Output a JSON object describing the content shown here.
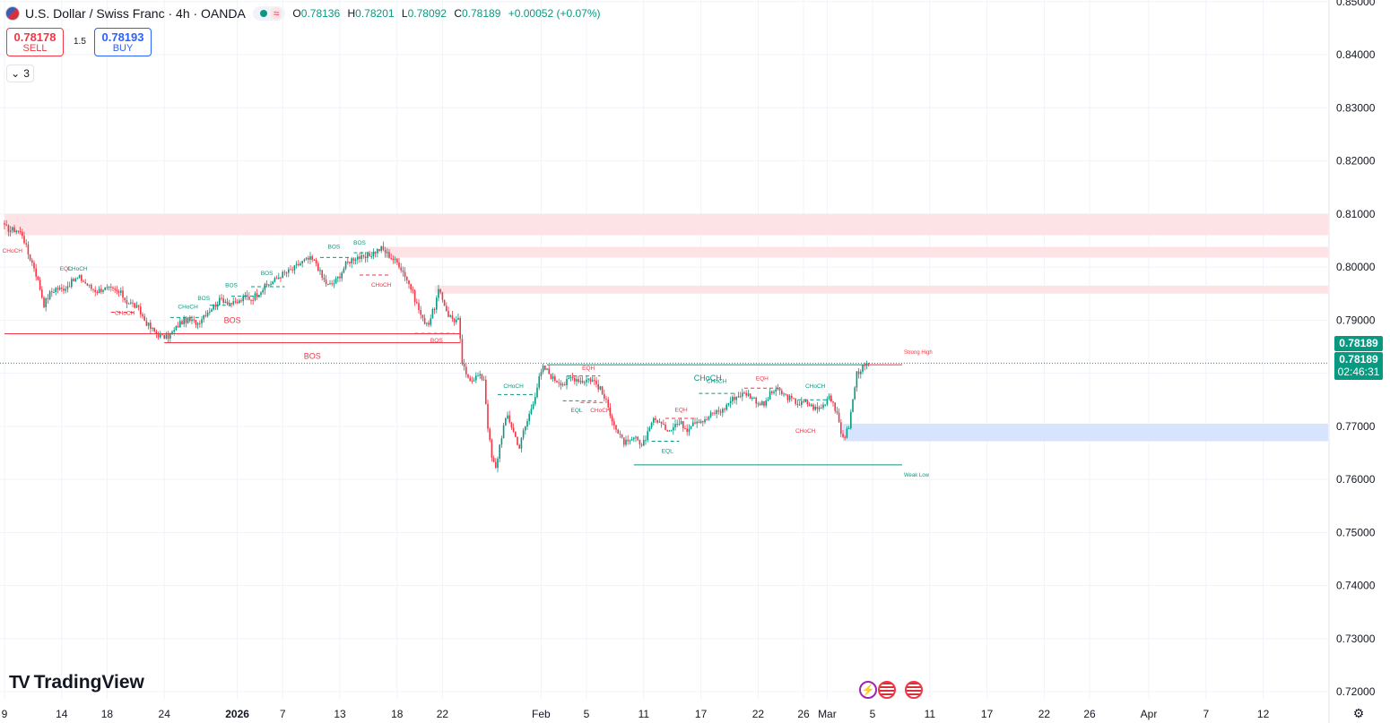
{
  "header": {
    "symbol_title": "U.S. Dollar / Swiss Franc · 4h · OANDA",
    "ohlc": {
      "o_label": "O",
      "o": "0.78136",
      "h_label": "H",
      "h": "0.78201",
      "l_label": "L",
      "l": "0.78092",
      "c_label": "C",
      "c": "0.78189",
      "change": "+0.00052 (+0.07%)"
    }
  },
  "trade": {
    "sell_price": "0.78178",
    "sell_label": "SELL",
    "buy_price": "0.78193",
    "buy_label": "BUY",
    "spread": "1.5"
  },
  "indicators": {
    "count": "3"
  },
  "brand": {
    "name": "TradingView"
  },
  "price_labels": {
    "last": "0.78189",
    "countdown_price": "0.78189",
    "countdown": "02:46:31"
  },
  "colors": {
    "up": "#089981",
    "down": "#f23645",
    "supply_zone": "#fde3e6",
    "demand_zone": "#d6e4fd",
    "accent": "#2962ff"
  },
  "icons": {
    "settings": "gear-icon",
    "events": [
      "lightning-icon",
      "us-flag-icon",
      "us-flag-icon"
    ]
  },
  "chart_data": {
    "type": "candlestick",
    "symbol": "USDCHF",
    "timeframe": "4h",
    "y_ticks": [
      "0.85000",
      "0.84000",
      "0.83000",
      "0.82000",
      "0.81000",
      "0.80000",
      "0.79000",
      "0.78000",
      "0.77000",
      "0.76000",
      "0.75000",
      "0.74000",
      "0.73000",
      "0.72000"
    ],
    "ylim": [
      0.7175,
      0.8503
    ],
    "x_ticks": [
      {
        "label": "9",
        "bar": 0
      },
      {
        "label": "14",
        "bar": 29
      },
      {
        "label": "18",
        "bar": 52
      },
      {
        "label": "24",
        "bar": 81
      },
      {
        "label": "2026",
        "bar": 118,
        "bold": true
      },
      {
        "label": "7",
        "bar": 141
      },
      {
        "label": "13",
        "bar": 170
      },
      {
        "label": "18",
        "bar": 199
      },
      {
        "label": "22",
        "bar": 222
      },
      {
        "label": "Feb",
        "bar": 272
      },
      {
        "label": "5",
        "bar": 295
      },
      {
        "label": "11",
        "bar": 324
      },
      {
        "label": "17",
        "bar": 353
      },
      {
        "label": "22",
        "bar": 382
      },
      {
        "label": "26",
        "bar": 405
      },
      {
        "label": "Mar",
        "bar": 417
      },
      {
        "label": "5",
        "bar": 440
      },
      {
        "label": "11",
        "bar": 469
      },
      {
        "label": "17",
        "bar": 498
      },
      {
        "label": "22",
        "bar": 527
      },
      {
        "label": "26",
        "bar": 550
      },
      {
        "label": "Apr",
        "bar": 580
      },
      {
        "label": "7",
        "bar": 609
      },
      {
        "label": "12",
        "bar": 638
      }
    ],
    "anchors": [
      [
        0,
        0.8075
      ],
      [
        3,
        0.807
      ],
      [
        6,
        0.807
      ],
      [
        9,
        0.8062
      ],
      [
        12,
        0.8025
      ],
      [
        15,
        0.8
      ],
      [
        18,
        0.796
      ],
      [
        20,
        0.793
      ],
      [
        23,
        0.795
      ],
      [
        26,
        0.796
      ],
      [
        29,
        0.7958
      ],
      [
        32,
        0.7965
      ],
      [
        35,
        0.7975
      ],
      [
        38,
        0.798
      ],
      [
        41,
        0.797
      ],
      [
        44,
        0.796
      ],
      [
        47,
        0.7955
      ],
      [
        50,
        0.796
      ],
      [
        53,
        0.7958
      ],
      [
        56,
        0.7955
      ],
      [
        59,
        0.795
      ],
      [
        62,
        0.7935
      ],
      [
        65,
        0.793
      ],
      [
        68,
        0.792
      ],
      [
        71,
        0.79
      ],
      [
        74,
        0.7885
      ],
      [
        77,
        0.7875
      ],
      [
        80,
        0.7868
      ],
      [
        83,
        0.787
      ],
      [
        86,
        0.788
      ],
      [
        89,
        0.7895
      ],
      [
        92,
        0.79
      ],
      [
        95,
        0.7898
      ],
      [
        98,
        0.7895
      ],
      [
        101,
        0.791
      ],
      [
        104,
        0.792
      ],
      [
        107,
        0.793
      ],
      [
        110,
        0.794
      ],
      [
        113,
        0.7935
      ],
      [
        116,
        0.793
      ],
      [
        119,
        0.7935
      ],
      [
        122,
        0.7945
      ],
      [
        125,
        0.794
      ],
      [
        128,
        0.795
      ],
      [
        131,
        0.796
      ],
      [
        134,
        0.7968
      ],
      [
        137,
        0.7975
      ],
      [
        140,
        0.7985
      ],
      [
        143,
        0.799
      ],
      [
        146,
        0.7995
      ],
      [
        149,
        0.8005
      ],
      [
        152,
        0.8012
      ],
      [
        155,
        0.8015
      ],
      [
        158,
        0.8008
      ],
      [
        161,
        0.798
      ],
      [
        164,
        0.7965
      ],
      [
        167,
        0.797
      ],
      [
        170,
        0.7985
      ],
      [
        173,
        0.8005
      ],
      [
        176,
        0.8015
      ],
      [
        179,
        0.802
      ],
      [
        182,
        0.8015
      ],
      [
        185,
        0.8022
      ],
      [
        188,
        0.803
      ],
      [
        191,
        0.8035
      ],
      [
        194,
        0.8025
      ],
      [
        197,
        0.8015
      ],
      [
        200,
        0.8005
      ],
      [
        203,
        0.7985
      ],
      [
        206,
        0.796
      ],
      [
        209,
        0.793
      ],
      [
        212,
        0.79
      ],
      [
        215,
        0.7895
      ],
      [
        218,
        0.7925
      ],
      [
        220,
        0.7955
      ],
      [
        223,
        0.793
      ],
      [
        225,
        0.791
      ],
      [
        228,
        0.79
      ],
      [
        230,
        0.79
      ],
      [
        232,
        0.782
      ],
      [
        234,
        0.7795
      ],
      [
        237,
        0.779
      ],
      [
        240,
        0.7795
      ],
      [
        243,
        0.779
      ],
      [
        245,
        0.77
      ],
      [
        247,
        0.764
      ],
      [
        249,
        0.762
      ],
      [
        251,
        0.7665
      ],
      [
        253,
        0.77
      ],
      [
        255,
        0.772
      ],
      [
        257,
        0.77
      ],
      [
        259,
        0.768
      ],
      [
        261,
        0.766
      ],
      [
        263,
        0.769
      ],
      [
        265,
        0.771
      ],
      [
        267,
        0.7735
      ],
      [
        269,
        0.776
      ],
      [
        271,
        0.779
      ],
      [
        273,
        0.781
      ],
      [
        275,
        0.7805
      ],
      [
        278,
        0.779
      ],
      [
        281,
        0.7785
      ],
      [
        284,
        0.778
      ],
      [
        287,
        0.7792
      ],
      [
        290,
        0.779
      ],
      [
        293,
        0.7785
      ],
      [
        296,
        0.779
      ],
      [
        299,
        0.7785
      ],
      [
        302,
        0.777
      ],
      [
        305,
        0.7745
      ],
      [
        308,
        0.7715
      ],
      [
        311,
        0.7685
      ],
      [
        314,
        0.767
      ],
      [
        317,
        0.7668
      ],
      [
        320,
        0.768
      ],
      [
        322,
        0.766
      ],
      [
        325,
        0.768
      ],
      [
        328,
        0.771
      ],
      [
        331,
        0.7712
      ],
      [
        334,
        0.7698
      ],
      [
        337,
        0.7695
      ],
      [
        340,
        0.7705
      ],
      [
        343,
        0.7705
      ],
      [
        346,
        0.7695
      ],
      [
        349,
        0.771
      ],
      [
        352,
        0.7712
      ],
      [
        355,
        0.771
      ],
      [
        358,
        0.7722
      ],
      [
        361,
        0.7728
      ],
      [
        364,
        0.773
      ],
      [
        367,
        0.7745
      ],
      [
        370,
        0.7755
      ],
      [
        373,
        0.776
      ],
      [
        376,
        0.7762
      ],
      [
        379,
        0.7755
      ],
      [
        382,
        0.7745
      ],
      [
        385,
        0.774
      ],
      [
        388,
        0.776
      ],
      [
        391,
        0.777
      ],
      [
        394,
        0.7762
      ],
      [
        397,
        0.7755
      ],
      [
        400,
        0.7748
      ],
      [
        403,
        0.7742
      ],
      [
        406,
        0.7745
      ],
      [
        409,
        0.7738
      ],
      [
        412,
        0.7732
      ],
      [
        415,
        0.774
      ],
      [
        418,
        0.776
      ],
      [
        420,
        0.7745
      ],
      [
        422,
        0.772
      ],
      [
        424,
        0.7685
      ],
      [
        426,
        0.7682
      ],
      [
        428,
        0.77
      ],
      [
        430,
        0.775
      ],
      [
        432,
        0.78
      ],
      [
        434,
        0.7808
      ],
      [
        436,
        0.7812
      ],
      [
        438,
        0.7819
      ]
    ],
    "current_price": 0.78189,
    "zones": [
      {
        "kind": "supply",
        "y_top": 0.81,
        "y_bottom": 0.806,
        "x_start_bar": 0
      },
      {
        "kind": "supply",
        "y_top": 0.8038,
        "y_bottom": 0.8018,
        "x_start_bar": 193
      },
      {
        "kind": "supply",
        "y_top": 0.7965,
        "y_bottom": 0.795,
        "x_start_bar": 218
      },
      {
        "kind": "demand",
        "y_top": 0.7705,
        "y_bottom": 0.7672,
        "x_start_bar": 425
      }
    ],
    "levels": [
      {
        "label": "BOS",
        "text_color": "#f23645",
        "y": 0.78745,
        "x_start_bar": 0,
        "x_end_bar": 231,
        "color": "#f23645",
        "style": "solid"
      },
      {
        "label": "BOS",
        "text_color": "#f23645",
        "y": 0.78575,
        "x_start_bar": 81,
        "x_end_bar": 231,
        "color": "#f23645",
        "style": "solid"
      },
      {
        "label": "CHoCH",
        "text_color": "#089981",
        "y": 0.7816,
        "x_start_bar": 275,
        "x_end_bar": 438,
        "color": "#089981",
        "style": "solid"
      },
      {
        "label": "Strong High",
        "text_color": "#f23645",
        "y": 0.7816,
        "x_start_bar": 438,
        "x_end_bar": 455,
        "color": "#f23645",
        "style": "solid"
      },
      {
        "label": "Weak Low",
        "text_color": "#089981",
        "y": 0.76275,
        "x_start_bar": 319,
        "x_end_bar": 455,
        "color": "#089981",
        "style": "solid"
      }
    ],
    "annotations": [
      {
        "text": "CHoCH",
        "bar": 4,
        "y": 0.8027,
        "color": "#f23645"
      },
      {
        "text": "EQL",
        "bar": 31,
        "y": 0.7993,
        "color": "#f23645"
      },
      {
        "text": "CHoCH",
        "bar": 37,
        "y": 0.7993,
        "color": "#089981"
      },
      {
        "text": "CHoCH",
        "bar": 61,
        "y": 0.791,
        "color": "#f23645"
      },
      {
        "text": "CHoCH",
        "bar": 93,
        "y": 0.7922,
        "color": "#089981"
      },
      {
        "text": "BOS",
        "bar": 101,
        "y": 0.7938,
        "color": "#089981"
      },
      {
        "text": "BOS",
        "bar": 115,
        "y": 0.7962,
        "color": "#089981"
      },
      {
        "text": "BOS",
        "bar": 133,
        "y": 0.7985,
        "color": "#089981"
      },
      {
        "text": "BOS",
        "bar": 167,
        "y": 0.8035,
        "color": "#089981"
      },
      {
        "text": "BOS",
        "bar": 180,
        "y": 0.8042,
        "color": "#089981"
      },
      {
        "text": "CHoCH",
        "bar": 191,
        "y": 0.7963,
        "color": "#f23645"
      },
      {
        "text": "BOS",
        "bar": 219,
        "y": 0.7858,
        "color": "#f23645"
      },
      {
        "text": "CHoCH",
        "bar": 258,
        "y": 0.7772,
        "color": "#089981"
      },
      {
        "text": "EQH",
        "bar": 296,
        "y": 0.7806,
        "color": "#f23645"
      },
      {
        "text": "EQL",
        "bar": 290,
        "y": 0.7727,
        "color": "#089981"
      },
      {
        "text": "CHoCH",
        "bar": 302,
        "y": 0.7727,
        "color": "#f23645"
      },
      {
        "text": "EQH",
        "bar": 343,
        "y": 0.7728,
        "color": "#f23645"
      },
      {
        "text": "EQL",
        "bar": 336,
        "y": 0.765,
        "color": "#089981"
      },
      {
        "text": "CHoCH",
        "bar": 361,
        "y": 0.7782,
        "color": "#089981"
      },
      {
        "text": "EQH",
        "bar": 384,
        "y": 0.7787,
        "color": "#f23645"
      },
      {
        "text": "CHoCH",
        "bar": 411,
        "y": 0.7772,
        "color": "#089981"
      },
      {
        "text": "CHoCH",
        "bar": 406,
        "y": 0.7688,
        "color": "#f23645"
      }
    ],
    "dashed_segments": [
      {
        "y": 0.7915,
        "x_start_bar": 54,
        "x_end_bar": 66,
        "color": "#f23645"
      },
      {
        "y": 0.7905,
        "x_start_bar": 84,
        "x_end_bar": 100,
        "color": "#089981"
      },
      {
        "y": 0.7928,
        "x_start_bar": 104,
        "x_end_bar": 115,
        "color": "#089981"
      },
      {
        "y": 0.7945,
        "x_start_bar": 115,
        "x_end_bar": 130,
        "color": "#089981"
      },
      {
        "y": 0.7963,
        "x_start_bar": 125,
        "x_end_bar": 142,
        "color": "#089981"
      },
      {
        "y": 0.8018,
        "x_start_bar": 160,
        "x_end_bar": 175,
        "color": "#089981"
      },
      {
        "y": 0.8027,
        "x_start_bar": 177,
        "x_end_bar": 190,
        "color": "#089981"
      },
      {
        "y": 0.7985,
        "x_start_bar": 180,
        "x_end_bar": 196,
        "color": "#f23645"
      },
      {
        "y": 0.7875,
        "x_start_bar": 208,
        "x_end_bar": 228,
        "color": "#f23645"
      },
      {
        "y": 0.776,
        "x_start_bar": 250,
        "x_end_bar": 268,
        "color": "#089981"
      },
      {
        "y": 0.7795,
        "x_start_bar": 285,
        "x_end_bar": 302,
        "color": "#f23645"
      },
      {
        "y": 0.7748,
        "x_start_bar": 283,
        "x_end_bar": 300,
        "color": "#089981"
      },
      {
        "y": 0.7745,
        "x_start_bar": 292,
        "x_end_bar": 305,
        "color": "#f23645"
      },
      {
        "y": 0.7715,
        "x_start_bar": 335,
        "x_end_bar": 350,
        "color": "#f23645"
      },
      {
        "y": 0.7672,
        "x_start_bar": 328,
        "x_end_bar": 342,
        "color": "#089981"
      },
      {
        "y": 0.7762,
        "x_start_bar": 352,
        "x_end_bar": 370,
        "color": "#089981"
      },
      {
        "y": 0.7772,
        "x_start_bar": 375,
        "x_end_bar": 392,
        "color": "#f23645"
      },
      {
        "y": 0.775,
        "x_start_bar": 402,
        "x_end_bar": 420,
        "color": "#089981"
      }
    ]
  }
}
